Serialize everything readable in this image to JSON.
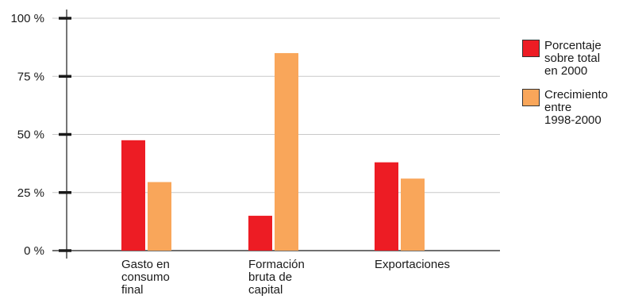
{
  "chart_data": {
    "type": "bar",
    "categories": [
      "Gasto en\nconsumo\nfinal",
      "Formación\nbruta de\ncapital",
      "Exportaciones"
    ],
    "series": [
      {
        "name": "Porcentaje\nsobre total\nen 2000",
        "values": [
          47.5,
          15,
          38
        ],
        "color": "#ed1c24"
      },
      {
        "name": "Crecimiento\nentre\n1998-2000",
        "values": [
          29.5,
          85,
          31
        ],
        "color": "#f9a65a"
      }
    ],
    "yticks": [
      0,
      25,
      50,
      75,
      100
    ],
    "ytick_labels": [
      "0 %",
      "25 %",
      "50 %",
      "75 %",
      "100 %"
    ],
    "ylim": [
      0,
      100
    ],
    "grid": true,
    "legend_position": "right"
  }
}
